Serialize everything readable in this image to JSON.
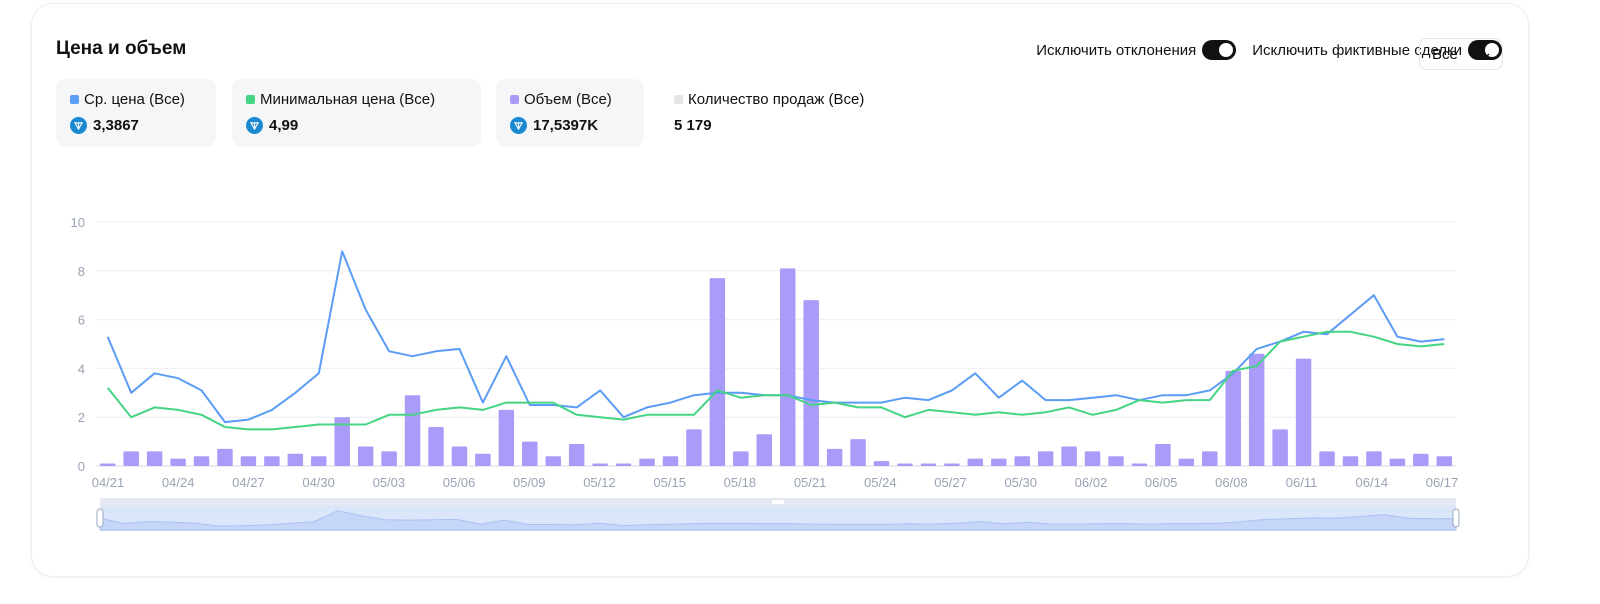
{
  "header": {
    "title": "Цена и объем"
  },
  "filters": {
    "exclude_outliers": "Исключить отклонения",
    "exclude_wash": "Исключить фиктивные сделки",
    "select_value": "Все"
  },
  "stats": [
    {
      "label": "Ср. цена (Все)",
      "value": "3,3867",
      "color": "#5b9cf5",
      "icon": "ton-icon"
    },
    {
      "label": "Минимальная цена (Все)",
      "value": "4,99",
      "color": "#45d483",
      "icon": "ton-icon"
    },
    {
      "label": "Объем (Все)",
      "value": "17,5397K",
      "color": "#a99cf8",
      "icon": "ton-icon"
    },
    {
      "label": "Количество продаж (Все)",
      "value": "5 179",
      "color": "#e4e4e4",
      "icon": ""
    }
  ],
  "chart_data": {
    "type": "bar",
    "title": "",
    "xlabel": "",
    "ylabel": "",
    "ylim": [
      0,
      10
    ],
    "yticks": [
      "0",
      "2",
      "4",
      "6",
      "8",
      "10"
    ],
    "x_tick_labels": [
      "04/21",
      "04/24",
      "04/27",
      "04/30",
      "05/03",
      "05/06",
      "05/09",
      "05/12",
      "05/15",
      "05/18",
      "05/21",
      "05/24",
      "05/27",
      "05/30",
      "06/02",
      "06/05",
      "06/08",
      "06/11",
      "06/14",
      "06/17"
    ],
    "grid": true,
    "series": [
      {
        "name": "Объем (Все)",
        "type": "bar",
        "color": "#a99cf8",
        "values": [
          0.1,
          0.6,
          0.6,
          0.3,
          0.4,
          0.7,
          0.4,
          0.4,
          0.5,
          0.4,
          2.0,
          0.8,
          0.6,
          2.9,
          1.6,
          0.8,
          0.5,
          2.3,
          1.0,
          0.4,
          0.9,
          0.1,
          0.1,
          0.3,
          0.4,
          1.5,
          7.7,
          0.6,
          1.3,
          8.1,
          6.8,
          0.7,
          1.1,
          0.2,
          0.1,
          0.1,
          0.1,
          0.3,
          0.3,
          0.4,
          0.6,
          0.8,
          0.6,
          0.4,
          0.1,
          0.9,
          0.3,
          0.6,
          3.9,
          4.6,
          1.5,
          4.4,
          0.6,
          0.4,
          0.6,
          0.3,
          0.5,
          0.4
        ]
      },
      {
        "name": "Ср. цена (Все)",
        "type": "line",
        "color": "#5b9cf5",
        "values": [
          5.3,
          3.0,
          3.8,
          3.6,
          3.1,
          1.8,
          1.9,
          2.3,
          3.0,
          3.8,
          8.8,
          6.4,
          4.7,
          4.5,
          4.7,
          4.8,
          2.6,
          4.5,
          2.5,
          2.5,
          2.4,
          3.1,
          2.0,
          2.4,
          2.6,
          2.9,
          3.0,
          3.0,
          2.9,
          2.9,
          2.7,
          2.6,
          2.6,
          2.6,
          2.8,
          2.7,
          3.1,
          3.8,
          2.8,
          3.5,
          2.7,
          2.7,
          2.8,
          2.9,
          2.7,
          2.9,
          2.9,
          3.1,
          3.8,
          4.8,
          5.1,
          5.5,
          5.4,
          6.2,
          7.0,
          5.3,
          5.1,
          5.2
        ]
      },
      {
        "name": "Минимальная цена (Все)",
        "type": "line",
        "color": "#45d483",
        "values": [
          3.2,
          2.0,
          2.4,
          2.3,
          2.1,
          1.6,
          1.5,
          1.5,
          1.6,
          1.7,
          1.7,
          1.7,
          2.1,
          2.1,
          2.3,
          2.4,
          2.3,
          2.6,
          2.6,
          2.6,
          2.1,
          2.0,
          1.9,
          2.1,
          2.1,
          2.1,
          3.1,
          2.8,
          2.9,
          2.9,
          2.5,
          2.6,
          2.4,
          2.4,
          2.0,
          2.3,
          2.2,
          2.1,
          2.2,
          2.1,
          2.2,
          2.4,
          2.1,
          2.3,
          2.7,
          2.6,
          2.7,
          2.7,
          3.9,
          4.1,
          5.1,
          5.3,
          5.5,
          5.5,
          5.3,
          5.0,
          4.9,
          5.0
        ]
      }
    ]
  }
}
